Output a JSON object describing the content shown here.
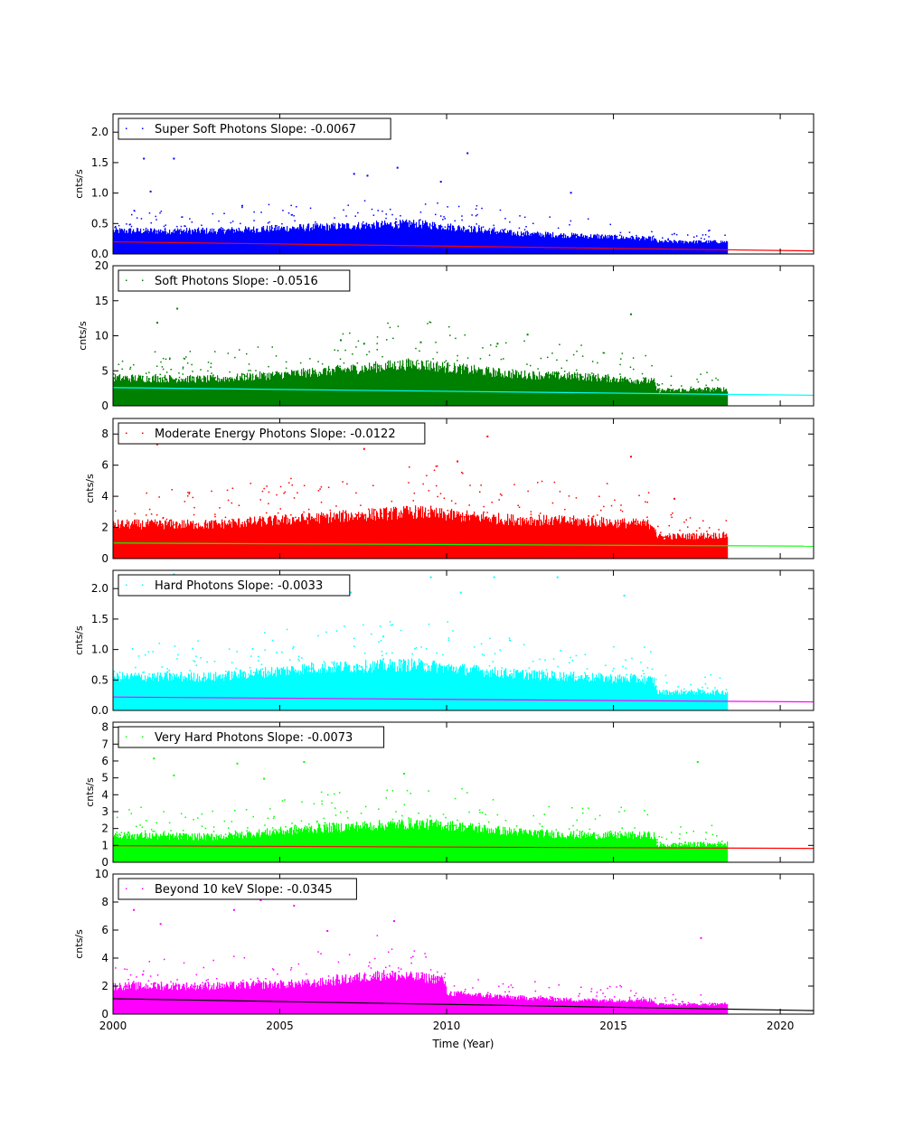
{
  "chart_data": [
    {
      "type": "scatter",
      "legend_label": "Super Soft Photons Slope: -0.0067",
      "ylabel": "cnts/s",
      "xlim": [
        2000,
        2021
      ],
      "ylim": [
        0,
        2.3
      ],
      "yticks": [
        "0.0",
        "0.5",
        "1.0",
        "1.5",
        "2.0"
      ],
      "ytick_values": [
        0,
        0.5,
        1.0,
        1.5,
        2.0
      ],
      "point_color": "#0000ff",
      "fit_color": "#ff0000",
      "band": [
        [
          2000,
          0.38
        ],
        [
          2003,
          0.38
        ],
        [
          2006,
          0.44
        ],
        [
          2009,
          0.5
        ],
        [
          2010,
          0.45
        ],
        [
          2012,
          0.34
        ],
        [
          2014,
          0.3
        ],
        [
          2016.2,
          0.25
        ],
        [
          2016.3,
          0.2
        ],
        [
          2018.4,
          0.2
        ]
      ],
      "outliers": [
        [
          2000.9,
          1.58
        ],
        [
          2001.8,
          1.58
        ],
        [
          2007.6,
          1.3
        ],
        [
          2008.5,
          1.43
        ],
        [
          2010.6,
          1.67
        ],
        [
          2007.2,
          1.33
        ],
        [
          2013.7,
          1.02
        ],
        [
          2009.8,
          1.2
        ],
        [
          2001.1,
          1.04
        ]
      ],
      "fit": [
        [
          2000,
          0.2
        ],
        [
          2021,
          0.05
        ]
      ]
    },
    {
      "type": "scatter",
      "legend_label": "Soft Photons Slope: -0.0516",
      "ylabel": "cnts/s",
      "xlim": [
        2000,
        2021
      ],
      "ylim": [
        0,
        20
      ],
      "yticks": [
        "0",
        "5",
        "10",
        "15",
        "20"
      ],
      "ytick_values": [
        0,
        5,
        10,
        15,
        20
      ],
      "point_color": "#008000",
      "fit_color": "#00ffff",
      "band": [
        [
          2000,
          4.0
        ],
        [
          2003,
          3.8
        ],
        [
          2006,
          4.8
        ],
        [
          2009,
          6.0
        ],
        [
          2010,
          5.5
        ],
        [
          2012,
          4.5
        ],
        [
          2014,
          4.2
        ],
        [
          2016.2,
          3.5
        ],
        [
          2016.3,
          2.2
        ],
        [
          2018.4,
          2.4
        ]
      ],
      "outliers": [
        [
          2001.3,
          12.0
        ],
        [
          2001.9,
          14.0
        ],
        [
          2015.5,
          13.2
        ],
        [
          2007.5,
          9.0
        ],
        [
          2009.2,
          9.2
        ],
        [
          2012.4,
          10.3
        ],
        [
          2011.5,
          9.0
        ],
        [
          2006.8,
          9.5
        ]
      ],
      "fit": [
        [
          2000,
          2.6
        ],
        [
          2021,
          1.5
        ]
      ]
    },
    {
      "type": "scatter",
      "legend_label": "Moderate Energy Photons Slope: -0.0122",
      "ylabel": "cnts/s",
      "xlim": [
        2000,
        2021
      ],
      "ylim": [
        0,
        9
      ],
      "yticks": [
        "0",
        "2",
        "4",
        "6",
        "8"
      ],
      "ytick_values": [
        0,
        2,
        4,
        6,
        8
      ],
      "point_color": "#ff0000",
      "fit_color": "#00ff00",
      "band": [
        [
          2000,
          2.2
        ],
        [
          2003,
          2.2
        ],
        [
          2006,
          2.6
        ],
        [
          2009,
          3.0
        ],
        [
          2010,
          2.8
        ],
        [
          2012,
          2.5
        ],
        [
          2014,
          2.4
        ],
        [
          2016.2,
          2.2
        ],
        [
          2016.3,
          1.4
        ],
        [
          2018.4,
          1.5
        ]
      ],
      "outliers": [
        [
          2001.3,
          7.4
        ],
        [
          2008.8,
          8.1
        ],
        [
          2011.2,
          7.9
        ],
        [
          2007.5,
          7.1
        ],
        [
          2010.3,
          6.3
        ],
        [
          2015.5,
          6.6
        ],
        [
          2016.8,
          3.9
        ]
      ],
      "fit": [
        [
          2000,
          1.0
        ],
        [
          2021,
          0.8
        ]
      ]
    },
    {
      "type": "scatter",
      "legend_label": "Hard Photons Slope: -0.0033",
      "ylabel": "cnts/s",
      "xlim": [
        2000,
        2021
      ],
      "ylim": [
        0,
        2.3
      ],
      "yticks": [
        "0.0",
        "0.5",
        "1.0",
        "1.5",
        "2.0"
      ],
      "ytick_values": [
        0,
        0.5,
        1.0,
        1.5,
        2.0
      ],
      "point_color": "#00ffff",
      "fit_color": "#ff00ff",
      "band": [
        [
          2000,
          0.55
        ],
        [
          2003,
          0.55
        ],
        [
          2006,
          0.7
        ],
        [
          2009,
          0.75
        ],
        [
          2010,
          0.7
        ],
        [
          2012,
          0.6
        ],
        [
          2014,
          0.55
        ],
        [
          2016.2,
          0.5
        ],
        [
          2016.3,
          0.3
        ],
        [
          2018.4,
          0.3
        ]
      ],
      "outliers": [
        [
          2001.8,
          2.25
        ],
        [
          2009.5,
          2.2
        ],
        [
          2011.4,
          2.2
        ],
        [
          2013.3,
          2.2
        ],
        [
          2007.1,
          1.95
        ],
        [
          2010.4,
          1.95
        ],
        [
          2015.3,
          1.9
        ]
      ],
      "fit": [
        [
          2000,
          0.22
        ],
        [
          2021,
          0.14
        ]
      ]
    },
    {
      "type": "scatter",
      "legend_label": "Very Hard Photons Slope: -0.0073",
      "ylabel": "cnts/s",
      "xlim": [
        2000,
        2021
      ],
      "ylim": [
        0,
        8.3
      ],
      "yticks": [
        "0",
        "1",
        "2",
        "3",
        "4",
        "5",
        "6",
        "7",
        "8"
      ],
      "ytick_values": [
        0,
        1,
        2,
        3,
        4,
        5,
        6,
        7,
        8
      ],
      "point_color": "#00ff00",
      "fit_color": "#ff0000",
      "band": [
        [
          2000,
          1.6
        ],
        [
          2003,
          1.5
        ],
        [
          2006,
          2.0
        ],
        [
          2009,
          2.3
        ],
        [
          2010,
          2.2
        ],
        [
          2012,
          1.8
        ],
        [
          2014,
          1.6
        ],
        [
          2016.2,
          1.6
        ],
        [
          2016.3,
          1.0
        ],
        [
          2018.4,
          1.1
        ]
      ],
      "outliers": [
        [
          2001.2,
          6.2
        ],
        [
          2005.7,
          6.0
        ],
        [
          2003.7,
          5.9
        ],
        [
          2017.5,
          6.0
        ],
        [
          2001.8,
          5.2
        ],
        [
          2004.5,
          5.0
        ],
        [
          2008.7,
          5.3
        ]
      ],
      "fit": [
        [
          2000,
          0.98
        ],
        [
          2021,
          0.82
        ]
      ]
    },
    {
      "type": "scatter",
      "legend_label": "Beyond 10 keV Slope: -0.0345",
      "ylabel": "cnts/s",
      "xlim": [
        2000,
        2021
      ],
      "ylim": [
        0,
        10
      ],
      "yticks": [
        "0",
        "2",
        "4",
        "6",
        "8",
        "10"
      ],
      "ytick_values": [
        0,
        2,
        4,
        6,
        8,
        10
      ],
      "xlabel": "Time (Year)",
      "xticks": [
        "2000",
        "2005",
        "2010",
        "2015",
        "2020"
      ],
      "xtick_values": [
        2000,
        2005,
        2010,
        2015,
        2020
      ],
      "point_color": "#ff00ff",
      "fit_color": "#000000",
      "band": [
        [
          2000,
          2.0
        ],
        [
          2003,
          2.0
        ],
        [
          2006,
          2.2
        ],
        [
          2008,
          2.8
        ],
        [
          2009.9,
          2.5
        ],
        [
          2010,
          1.5
        ],
        [
          2012,
          1.2
        ],
        [
          2014,
          1.0
        ],
        [
          2016.2,
          1.0
        ],
        [
          2016.3,
          0.7
        ],
        [
          2018.4,
          0.7
        ]
      ],
      "outliers": [
        [
          2000.6,
          7.5
        ],
        [
          2001.4,
          6.5
        ],
        [
          2004.4,
          8.2
        ],
        [
          2005.4,
          7.8
        ],
        [
          2003.6,
          7.5
        ],
        [
          2008.4,
          6.7
        ],
        [
          2017.6,
          5.5
        ],
        [
          2006.4,
          6.0
        ]
      ],
      "fit": [
        [
          2000,
          1.1
        ],
        [
          2021,
          0.25
        ]
      ]
    }
  ]
}
